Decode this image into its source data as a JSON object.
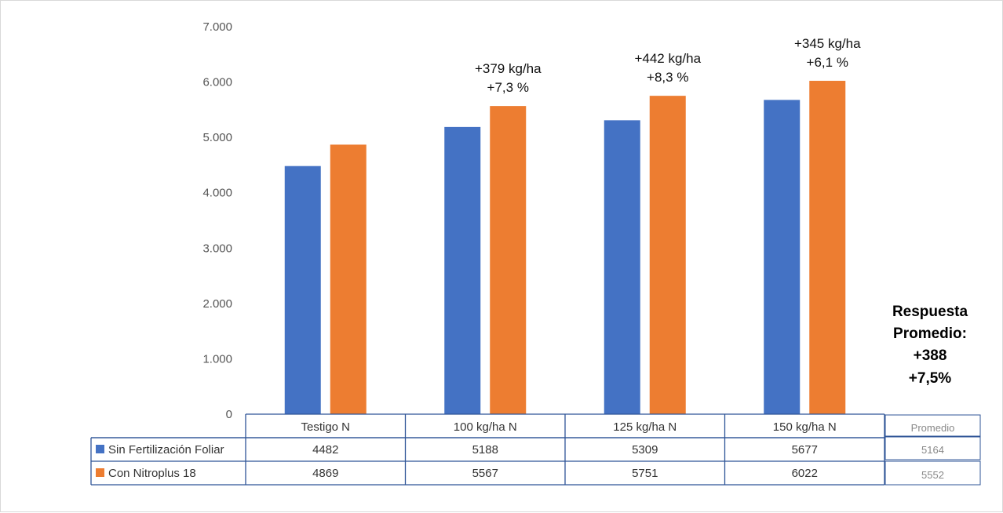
{
  "chart_data": {
    "type": "bar",
    "categories": [
      "Testigo N",
      "100 kg/ha N",
      "125 kg/ha N",
      "150 kg/ha N"
    ],
    "series": [
      {
        "name": "Sin Fertilización Foliar",
        "color": "#4472c4",
        "values": [
          4482,
          5188,
          5309,
          5677
        ]
      },
      {
        "name": "Con Nitroplus 18",
        "color": "#ed7d31",
        "values": [
          4869,
          5567,
          5751,
          6022
        ]
      }
    ],
    "ylim": [
      0,
      7000
    ],
    "yticks": [
      {
        "value": 0,
        "label": "0"
      },
      {
        "value": 1000,
        "label": "1.000"
      },
      {
        "value": 2000,
        "label": "2.000"
      },
      {
        "value": 3000,
        "label": "3.000"
      },
      {
        "value": 4000,
        "label": "4.000"
      },
      {
        "value": 5000,
        "label": "5.000"
      },
      {
        "value": 6000,
        "label": "6.000"
      },
      {
        "value": 7000,
        "label": "7.000"
      }
    ],
    "annotations": [
      {
        "category_index": 1,
        "lines": [
          "+379 kg/ha",
          "+7,3 %"
        ]
      },
      {
        "category_index": 2,
        "lines": [
          "+442 kg/ha",
          "+8,3 %"
        ]
      },
      {
        "category_index": 3,
        "lines": [
          "+345 kg/ha",
          "+6,1 %"
        ]
      }
    ],
    "data_table": true,
    "grid": false,
    "legend_placement": "table-left",
    "average": {
      "header": "Promedio",
      "values": [
        "5164",
        "5552"
      ]
    },
    "response_note": [
      "Respuesta",
      "Promedio:",
      "+388",
      "+7,5%"
    ]
  }
}
